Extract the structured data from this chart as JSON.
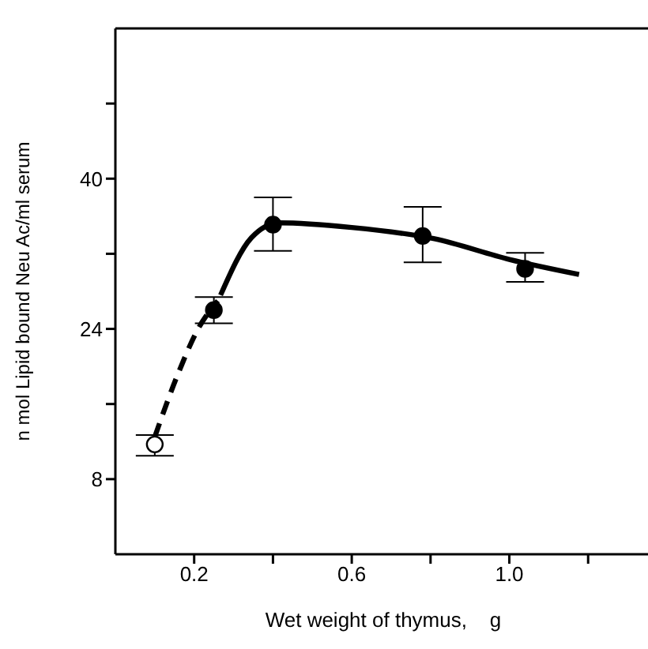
{
  "chart_data": {
    "type": "scatter",
    "xlabel": "Wet weight of thymus,    g",
    "ylabel": "n mol  Lipid bound  Neu Ac/ml  serum",
    "xlim": [
      0,
      1.36
    ],
    "ylim": [
      0,
      56
    ],
    "xticks": [
      0.2,
      {
        "value": 0.4,
        "label": null
      },
      0.6,
      {
        "value": 0.8,
        "label": null
      },
      {
        "value": 1,
        "label": "1.0"
      },
      {
        "value": 1.2,
        "label": null
      }
    ],
    "yticks": [
      8,
      {
        "value": 16,
        "label": null
      },
      24,
      {
        "value": 32,
        "label": null
      },
      40,
      {
        "value": 48,
        "label": null
      }
    ],
    "grid": false,
    "legend": false,
    "series": [
      {
        "marker": "circle",
        "color": "#ffffff",
        "x": [
          0.1
        ],
        "values": [
          11.7
        ],
        "errors": [
          [
            10.5,
            12.7
          ]
        ]
      },
      {
        "marker": "circle",
        "color": "#000000",
        "x": [
          0.25,
          0.4,
          0.78,
          1.04
        ],
        "values": [
          26,
          35.1,
          33.9,
          30.4
        ],
        "errors": [
          [
            24.6,
            27.4
          ],
          [
            32.3,
            38
          ],
          [
            31.1,
            37
          ],
          [
            29,
            32.1
          ]
        ]
      },
      {
        "type": "line",
        "color": "#000000",
        "line_style": "dashed",
        "x": [
          0.1,
          0.156,
          0.21,
          0.26
        ],
        "values": [
          12.5,
          18.9,
          24,
          27
        ]
      },
      {
        "type": "line",
        "color": "#000000",
        "line_style": "solid",
        "x": [
          0.267,
          0.345,
          0.416,
          0.6,
          0.81,
          1,
          1.177
        ],
        "values": [
          27.6,
          33.7,
          35.3,
          34.8,
          33.6,
          31.4,
          29.8
        ]
      }
    ]
  }
}
